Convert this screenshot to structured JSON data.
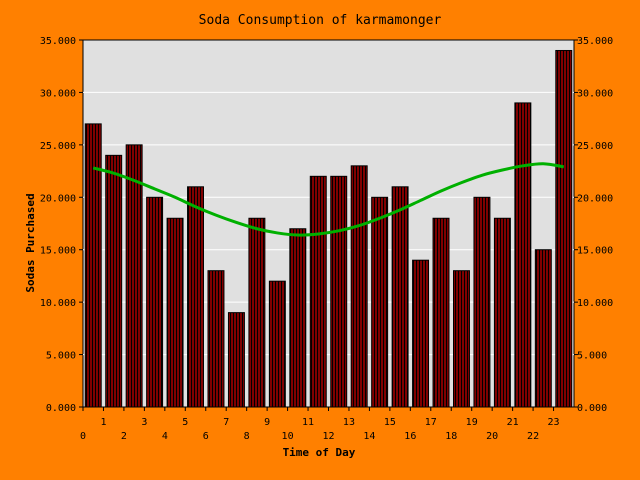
{
  "chart_data": {
    "type": "bar",
    "title": "Soda Consumption of karmamonger",
    "xlabel": "Time of Day",
    "ylabel": "Sodas Purchased",
    "ylim": [
      0,
      35
    ],
    "yticks": [
      "0.000",
      "5.000",
      "10.000",
      "15.000",
      "20.000",
      "25.000",
      "30.000",
      "35.000"
    ],
    "categories": [
      "0",
      "1",
      "2",
      "3",
      "4",
      "5",
      "6",
      "7",
      "8",
      "9",
      "10",
      "11",
      "12",
      "13",
      "14",
      "15",
      "16",
      "17",
      "18",
      "19",
      "20",
      "21",
      "22",
      "23"
    ],
    "values": [
      27,
      24,
      25,
      20,
      18,
      21,
      13,
      9,
      18,
      12,
      17,
      22,
      22,
      23,
      20,
      21,
      14,
      18,
      13,
      20,
      18,
      29,
      15,
      34
    ],
    "trend": [
      22.8,
      22.3,
      21.6,
      20.8,
      20.0,
      19.1,
      18.3,
      17.6,
      17.0,
      16.6,
      16.4,
      16.5,
      16.8,
      17.3,
      18.0,
      18.8,
      19.7,
      20.6,
      21.4,
      22.1,
      22.6,
      23.0,
      23.2,
      22.9
    ],
    "colors": {
      "background": "#FF8000",
      "plot_area": "#E0E0E0",
      "bar_fill": "#800000",
      "bar_stripe": "#000000",
      "trend": "#00B000"
    },
    "grid": true,
    "legend": "none"
  }
}
